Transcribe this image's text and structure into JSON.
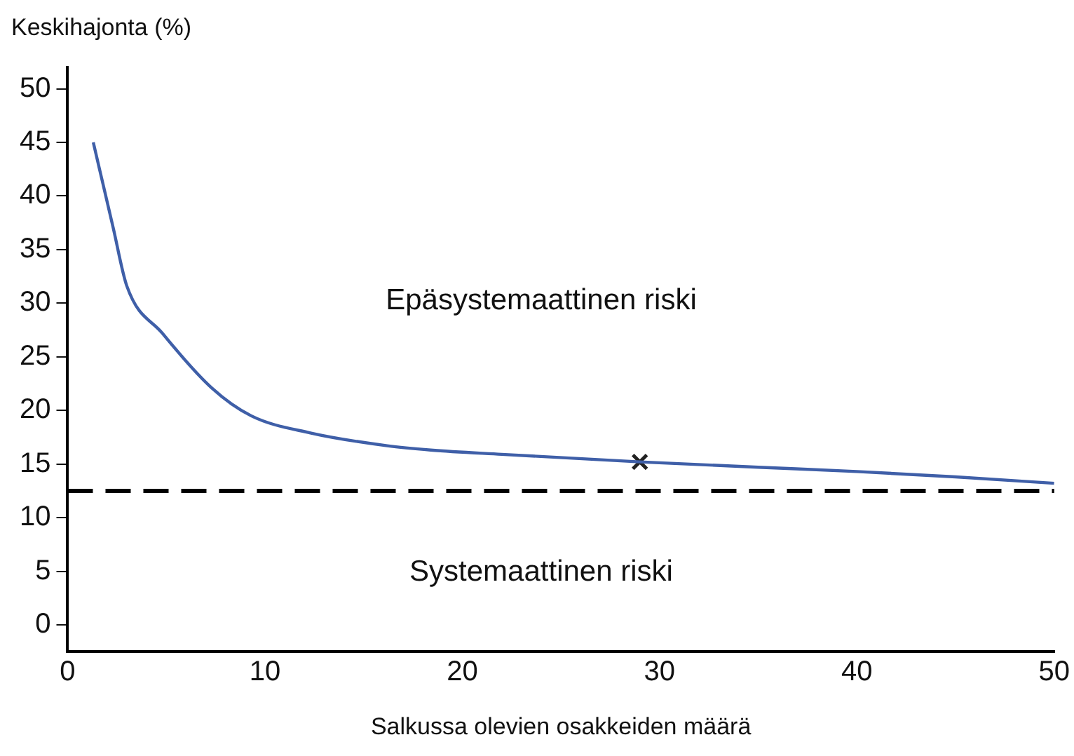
{
  "chart_data": {
    "type": "line",
    "xlabel": "Salkussa olevien osakkeiden määrä",
    "ylabel": "Keskihajonta (%)",
    "xlim": [
      0,
      50
    ],
    "xticks": [
      0,
      10,
      20,
      30,
      40,
      50
    ],
    "ylim": [
      -2.5,
      52
    ],
    "yticks": [
      0,
      5,
      10,
      15,
      20,
      25,
      30,
      35,
      40,
      45,
      50
    ],
    "grid": false,
    "legend": false,
    "series": [
      {
        "color": "#3f5fa8",
        "marker": "none",
        "x": [
          1.3,
          2.3,
          3,
          4.8,
          7.3,
          9.3,
          12.3,
          16.2,
          18.4,
          22,
          29,
          35,
          40,
          45,
          50
        ],
        "values": [
          45,
          37.1,
          31.6,
          27.2,
          22.1,
          19.5,
          17.9,
          16.7,
          16.3,
          15.9,
          15.2,
          14.7,
          14.3,
          13.8,
          13.2
        ]
      },
      {
        "type": "scatter",
        "color": "#222222",
        "marker": "cross",
        "x": [
          29
        ],
        "values": [
          15.2
        ]
      }
    ],
    "ref_lines": [
      {
        "axis": "y",
        "value": 12.5,
        "color": "#000000",
        "line_style": "dashed"
      }
    ],
    "annotations": [
      "Epäsystemaattinen riski",
      "Systemaattinen riski"
    ]
  }
}
